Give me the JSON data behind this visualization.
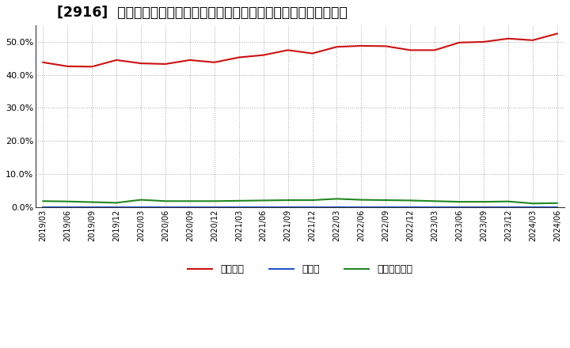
{
  "title": "[2916]  自己資本、のれん、繰延税金資産の総資産に対する比率の推移",
  "x_labels": [
    "2019/03",
    "2019/06",
    "2019/09",
    "2019/12",
    "2020/03",
    "2020/06",
    "2020/09",
    "2020/12",
    "2021/03",
    "2021/06",
    "2021/09",
    "2021/12",
    "2022/03",
    "2022/06",
    "2022/09",
    "2022/12",
    "2023/03",
    "2023/06",
    "2023/09",
    "2023/12",
    "2024/03",
    "2024/06"
  ],
  "jiko_shihon": [
    43.8,
    42.6,
    42.5,
    44.5,
    43.5,
    43.3,
    44.5,
    43.8,
    45.3,
    46.0,
    47.5,
    46.5,
    48.5,
    48.8,
    48.7,
    47.5,
    47.5,
    49.8,
    50.0,
    51.0,
    50.5,
    52.5
  ],
  "noren": [
    0.0,
    0.0,
    0.0,
    0.0,
    0.0,
    0.0,
    0.0,
    0.0,
    0.0,
    0.0,
    0.0,
    0.0,
    0.0,
    0.0,
    0.0,
    0.0,
    0.0,
    0.0,
    0.0,
    0.0,
    0.0,
    0.0
  ],
  "kurinobe": [
    1.8,
    1.7,
    1.5,
    1.3,
    2.2,
    1.8,
    1.8,
    1.8,
    1.9,
    2.0,
    2.1,
    2.1,
    2.5,
    2.2,
    2.1,
    2.0,
    1.8,
    1.6,
    1.6,
    1.7,
    1.1,
    1.2
  ],
  "jiko_color": "#cc1111",
  "noren_color": "#2255cc",
  "kurinobe_color": "#228822",
  "legend_labels": [
    "自己資本",
    "のれん",
    "繰延税金資産"
  ],
  "ylim": [
    0,
    55
  ],
  "yticks": [
    0.0,
    10.0,
    20.0,
    30.0,
    40.0,
    50.0
  ],
  "background_color": "#ffffff",
  "grid_color": "#aaaaaa",
  "title_fontsize": 12.5,
  "spine_color": "#333333"
}
